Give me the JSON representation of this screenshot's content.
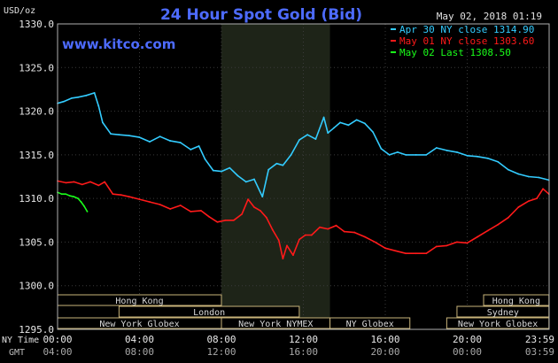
{
  "chart_data": {
    "type": "line",
    "title": "24 Hour Spot Gold (Bid)",
    "website": "www.kitco.com",
    "datetime": "May 02, 2018 01:19",
    "ylabel": "USD/oz",
    "ylim": [
      1295.0,
      1330.0
    ],
    "y_ticks": [
      "1330.0",
      "1325.0",
      "1320.0",
      "1315.0",
      "1310.0",
      "1305.0",
      "1300.0",
      "1295.0"
    ],
    "x_ticks_ny": [
      "00:00",
      "04:00",
      "08:00",
      "12:00",
      "16:00",
      "20:00",
      "23:59"
    ],
    "x_ticks_gmt": [
      "04:00",
      "08:00",
      "12:00",
      "16:00",
      "20:00",
      "00:00",
      "03:59"
    ],
    "x_label_ny": "NY Time",
    "x_label_gmt": "GMT",
    "x_range_hours": [
      0,
      24
    ],
    "highlight_hours": [
      8,
      13.3
    ],
    "grid": true,
    "legend_position": "top-right",
    "colors": {
      "background": "#000000",
      "plot_bg": "#000000",
      "highlight_bg": "#1e2418",
      "grid": "#3a3a3a",
      "axis": "#b0b0b0",
      "text": "#e8e8e8",
      "title": "#4d6bff",
      "session_bg": "#000000",
      "session_border": "#c8b37a",
      "session_text": "#d8d8d8"
    },
    "series": [
      {
        "name": "Apr 30 NY close 1314.90",
        "color": "#33ccff",
        "x": [
          0,
          0.3,
          0.7,
          1.0,
          1.4,
          1.8,
          2.0,
          2.2,
          2.6,
          3.0,
          3.5,
          4.0,
          4.5,
          5.0,
          5.5,
          6.0,
          6.5,
          6.9,
          7.2,
          7.6,
          8.0,
          8.4,
          8.8,
          9.2,
          9.6,
          10.0,
          10.3,
          10.7,
          11.0,
          11.4,
          11.8,
          12.2,
          12.6,
          13.0,
          13.2,
          13.5,
          13.8,
          14.2,
          14.6,
          15.0,
          15.4,
          15.8,
          16.2,
          16.6,
          17.0,
          17.5,
          18.0,
          18.5,
          19.0,
          19.5,
          20.0,
          20.5,
          21.0,
          21.5,
          22.0,
          22.5,
          23.0,
          23.5,
          23.99
        ],
        "values": [
          1320.9,
          1321.1,
          1321.5,
          1321.6,
          1321.8,
          1322.1,
          1320.6,
          1318.7,
          1317.4,
          1317.3,
          1317.2,
          1317.0,
          1316.5,
          1317.1,
          1316.6,
          1316.4,
          1315.6,
          1316.0,
          1314.5,
          1313.2,
          1313.1,
          1313.5,
          1312.6,
          1311.9,
          1312.2,
          1310.2,
          1313.3,
          1314.0,
          1313.8,
          1315.0,
          1316.7,
          1317.3,
          1316.8,
          1319.3,
          1317.5,
          1318.1,
          1318.7,
          1318.4,
          1319.0,
          1318.6,
          1317.6,
          1315.7,
          1315.0,
          1315.3,
          1315.0,
          1315.0,
          1315.0,
          1315.8,
          1315.5,
          1315.3,
          1314.9,
          1314.8,
          1314.6,
          1314.2,
          1313.3,
          1312.8,
          1312.5,
          1312.4,
          1312.1
        ]
      },
      {
        "name": "May 01 NY close 1303.60",
        "color": "#ff1a1a",
        "x": [
          0,
          0.4,
          0.8,
          1.2,
          1.6,
          2.0,
          2.3,
          2.7,
          3.1,
          3.5,
          4.0,
          4.5,
          5.0,
          5.5,
          6.0,
          6.5,
          7.0,
          7.4,
          7.8,
          8.2,
          8.6,
          9.0,
          9.3,
          9.6,
          9.9,
          10.2,
          10.5,
          10.8,
          11.0,
          11.2,
          11.5,
          11.8,
          12.1,
          12.4,
          12.8,
          13.2,
          13.6,
          14.0,
          14.5,
          15.0,
          15.5,
          16.0,
          16.5,
          17.0,
          17.5,
          18.0,
          18.5,
          19.0,
          19.5,
          20.0,
          20.5,
          21.0,
          21.5,
          22.0,
          22.5,
          23.0,
          23.4,
          23.7,
          23.99
        ],
        "values": [
          1312.0,
          1311.8,
          1311.9,
          1311.6,
          1311.9,
          1311.5,
          1311.9,
          1310.5,
          1310.4,
          1310.2,
          1309.9,
          1309.6,
          1309.3,
          1308.8,
          1309.2,
          1308.5,
          1308.6,
          1307.9,
          1307.3,
          1307.5,
          1307.5,
          1308.2,
          1309.9,
          1309.0,
          1308.6,
          1307.8,
          1306.4,
          1305.2,
          1303.1,
          1304.6,
          1303.5,
          1305.3,
          1305.8,
          1305.8,
          1306.7,
          1306.5,
          1306.9,
          1306.2,
          1306.1,
          1305.6,
          1305.0,
          1304.3,
          1304.0,
          1303.7,
          1303.7,
          1303.7,
          1304.5,
          1304.6,
          1305.0,
          1304.9,
          1305.6,
          1306.3,
          1307.0,
          1307.8,
          1309.0,
          1309.7,
          1310.0,
          1311.1,
          1310.5
        ]
      },
      {
        "name": "May 02 Last 1308.50",
        "color": "#1aff1a",
        "x": [
          0,
          0.2,
          0.4,
          0.6,
          0.8,
          1.0,
          1.15,
          1.3,
          1.45
        ],
        "values": [
          1310.7,
          1310.5,
          1310.5,
          1310.3,
          1310.2,
          1310.0,
          1309.6,
          1309.1,
          1308.5
        ]
      }
    ],
    "sessions": [
      {
        "name": "Hong Kong",
        "start": 0,
        "end": 8,
        "row": 0
      },
      {
        "name": "Hong Kong",
        "start": 20.8,
        "end": 23.99,
        "row": 0
      },
      {
        "name": "London",
        "start": 3,
        "end": 11.8,
        "row": 1
      },
      {
        "name": "Sydney",
        "start": 19.5,
        "end": 23.99,
        "row": 1
      },
      {
        "name": "New York Globex",
        "start": 0,
        "end": 8,
        "row": 2
      },
      {
        "name": "New York NYMEX",
        "start": 8,
        "end": 13.3,
        "row": 2
      },
      {
        "name": "NY Globex",
        "start": 13.3,
        "end": 17.2,
        "row": 2
      },
      {
        "name": "New York Globex",
        "start": 19.0,
        "end": 23.99,
        "row": 2
      }
    ]
  }
}
